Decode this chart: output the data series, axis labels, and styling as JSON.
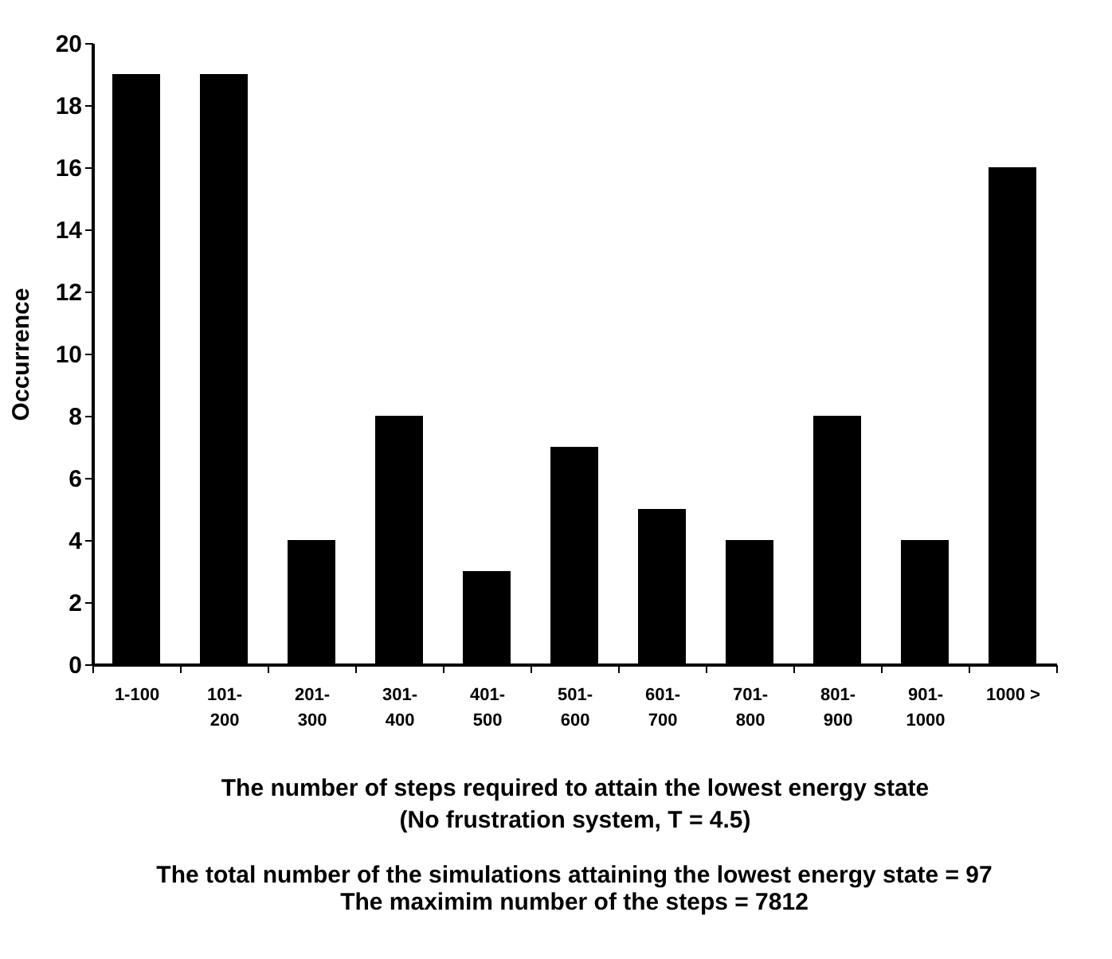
{
  "chart_data": {
    "type": "bar",
    "categories": [
      "1-100",
      "101-\n200",
      "201-\n300",
      "301-\n400",
      "401-\n500",
      "501-\n600",
      "601-\n700",
      "701-\n800",
      "801-\n900",
      "901-\n1000",
      "1000 >"
    ],
    "values": [
      19,
      19,
      4,
      8,
      3,
      7,
      5,
      4,
      8,
      4,
      16
    ],
    "color": "#000000",
    "xlabel": "The number of steps required to attain the lowest energy state\n(No frustration system, T = 4.5)",
    "ylabel": "Occurrence",
    "ylim": [
      0,
      20
    ],
    "yticks": [
      0,
      2,
      4,
      6,
      8,
      10,
      12,
      14,
      16,
      18,
      20
    ],
    "grid": false,
    "annotations": [
      "The total number of the simulations attaining the lowest energy state = 97",
      "The maximim number of the steps = 7812"
    ]
  }
}
